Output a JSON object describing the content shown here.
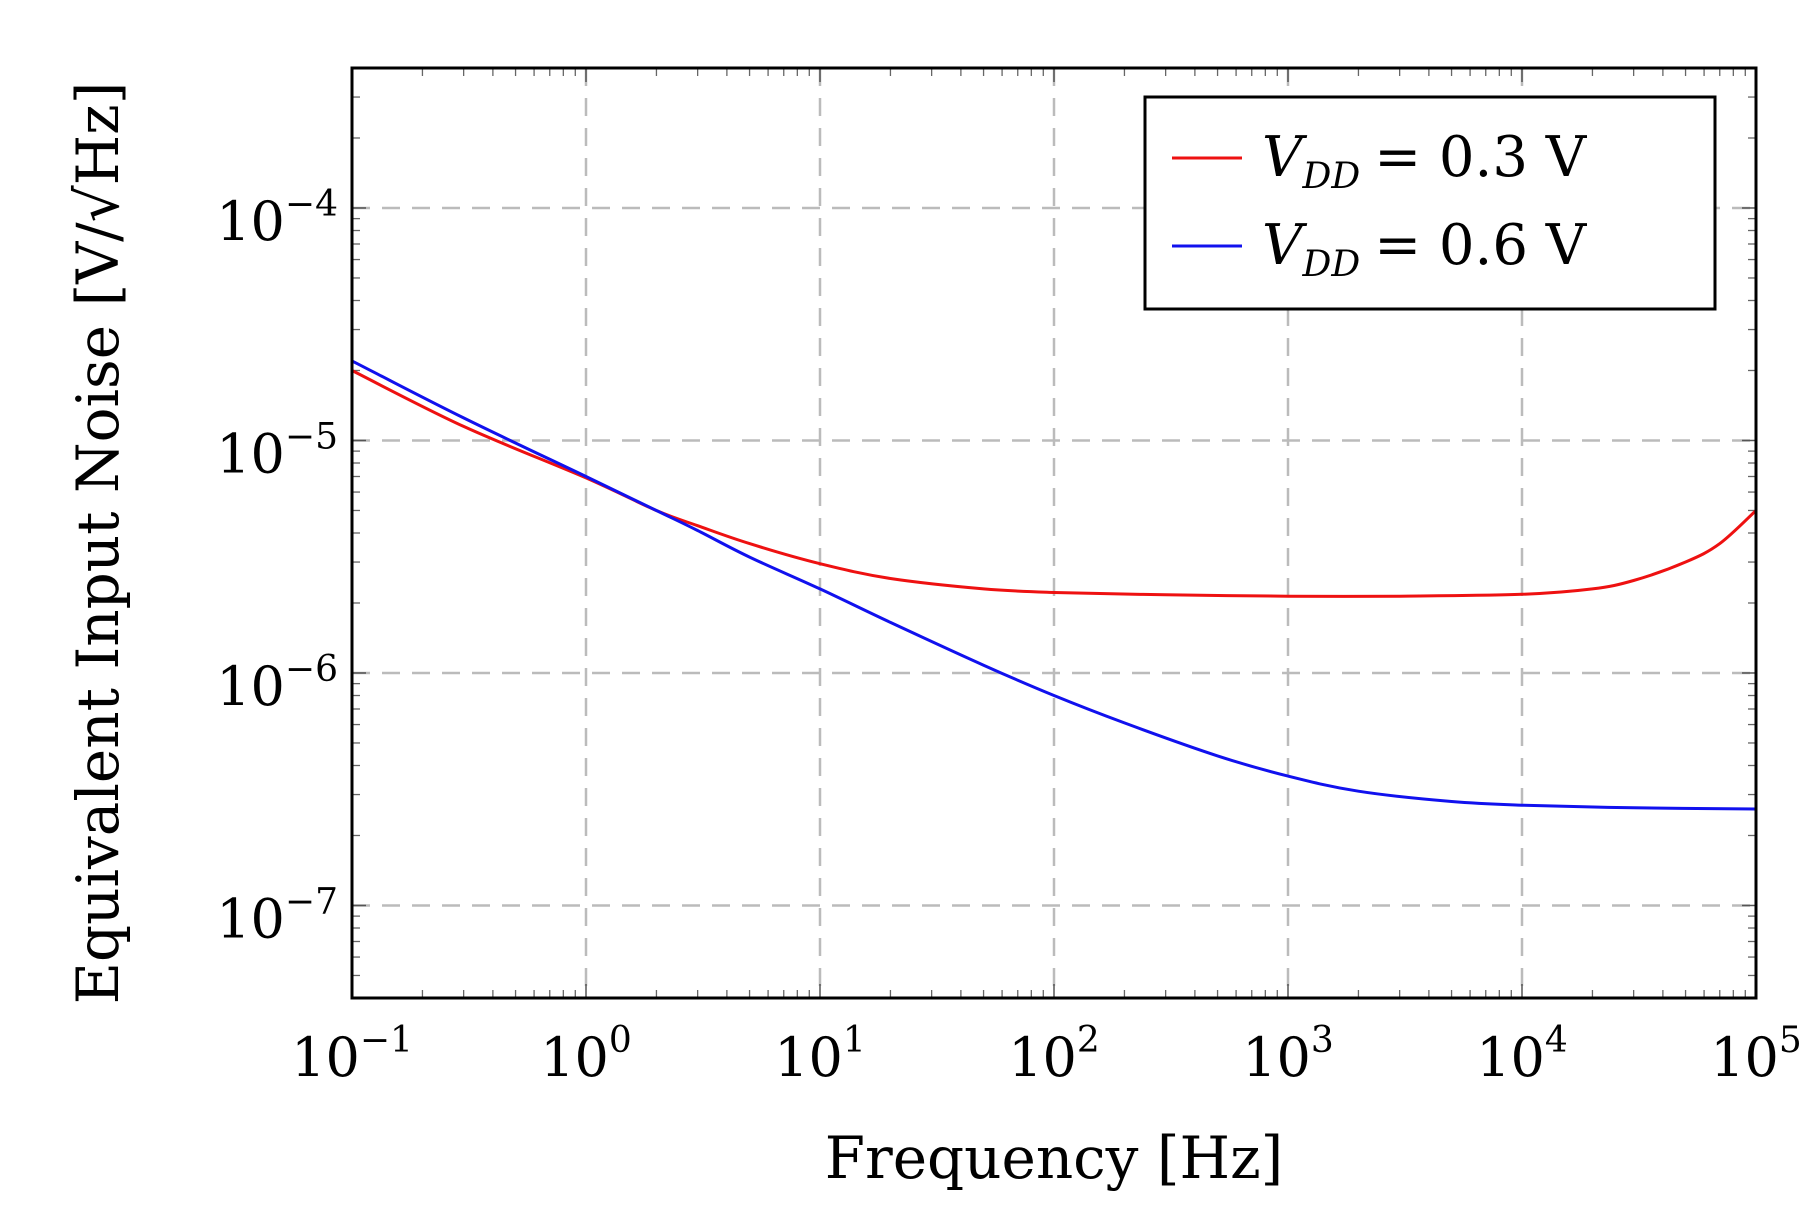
{
  "chart_data": {
    "type": "line",
    "title": "",
    "xlabel": "Frequency [Hz]",
    "ylabel": "Equivalent Input Noise [V/√Hz]",
    "xscale": "log",
    "yscale": "log",
    "xlim": [
      0.1,
      100000
    ],
    "ylim": [
      4e-08,
      0.0004
    ],
    "grid": true,
    "legend_position": "top-right",
    "x_tick_labels": [
      {
        "base": "10",
        "exp": "−1"
      },
      {
        "base": "10",
        "exp": "0"
      },
      {
        "base": "10",
        "exp": "1"
      },
      {
        "base": "10",
        "exp": "2"
      },
      {
        "base": "10",
        "exp": "3"
      },
      {
        "base": "10",
        "exp": "4"
      },
      {
        "base": "10",
        "exp": "5"
      }
    ],
    "y_tick_labels": [
      {
        "base": "10",
        "exp": "−7"
      },
      {
        "base": "10",
        "exp": "−6"
      },
      {
        "base": "10",
        "exp": "−5"
      },
      {
        "base": "10",
        "exp": "−4"
      }
    ],
    "series": [
      {
        "name": "V_DD = 0.3 V",
        "legend_var": "V",
        "legend_sub": "DD",
        "legend_rest": "= 0.3 V",
        "color": "#ee1111",
        "x": [
          0.1,
          0.3,
          1,
          2,
          3,
          5,
          10,
          20,
          50,
          100,
          300,
          1000,
          3000,
          10000,
          20000,
          30000,
          50000,
          70000,
          100000
        ],
        "y": [
          2e-05,
          1.15e-05,
          6.9e-06,
          5e-06,
          4.3e-06,
          3.6e-06,
          2.95e-06,
          2.55e-06,
          2.3e-06,
          2.22e-06,
          2.17e-06,
          2.14e-06,
          2.14e-06,
          2.18e-06,
          2.3e-06,
          2.5e-06,
          3e-06,
          3.6e-06,
          5e-06
        ]
      },
      {
        "name": "V_DD = 0.6 V",
        "legend_var": "V",
        "legend_sub": "DD",
        "legend_rest": "= 0.6 V",
        "color": "#1111ee",
        "x": [
          0.1,
          0.3,
          1,
          2,
          3,
          5,
          10,
          20,
          50,
          100,
          200,
          500,
          1000,
          2000,
          5000,
          10000,
          30000,
          100000
        ],
        "y": [
          2.2e-05,
          1.25e-05,
          7e-06,
          5e-06,
          4.1e-06,
          3.15e-06,
          2.3e-06,
          1.65e-06,
          1.08e-06,
          8e-07,
          6.1e-07,
          4.4e-07,
          3.6e-07,
          3.1e-07,
          2.8e-07,
          2.7e-07,
          2.63e-07,
          2.6e-07
        ]
      }
    ]
  }
}
